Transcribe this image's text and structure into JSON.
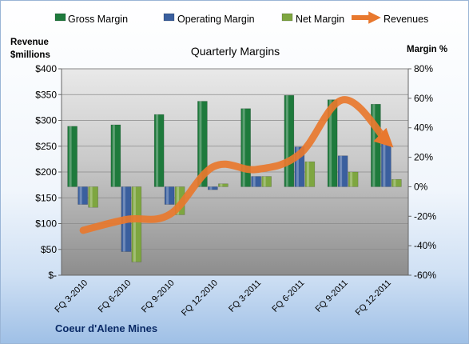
{
  "company": "Coeur d'Alene Mines",
  "chart_data": {
    "type": "bar",
    "title": "Quarterly Margins",
    "categories": [
      "FQ 3-2010",
      "FQ 6-2010",
      "FQ 9-2010",
      "FQ 12-2010",
      "FQ 3-2011",
      "FQ 6-2011",
      "FQ 9-2011",
      "FQ 12-2011"
    ],
    "ylabel_left": "Revenue\n$millions",
    "ylabel_right": "Margin %",
    "left_axis": {
      "min": 0,
      "max": 400,
      "step": 50,
      "tick_labels": [
        "$-",
        "$50",
        "$100",
        "$150",
        "$200",
        "$250",
        "$300",
        "$350",
        "$400"
      ]
    },
    "right_axis": {
      "min": -60,
      "max": 80,
      "step": 20,
      "tick_labels": [
        "-60%",
        "-40%",
        "-20%",
        "0%",
        "20%",
        "40%",
        "60%",
        "80%"
      ]
    },
    "series": [
      {
        "name": "Gross Margin",
        "axis": "right",
        "kind": "bar",
        "color": "#1e7a3c",
        "values": [
          41,
          42,
          49,
          58,
          53,
          62,
          59,
          56
        ]
      },
      {
        "name": "Operating Margin",
        "axis": "right",
        "kind": "bar",
        "color": "#3a5f9e",
        "values": [
          -12,
          -44,
          -12,
          -2,
          7,
          27,
          21,
          30
        ]
      },
      {
        "name": "Net Margin",
        "axis": "right",
        "kind": "bar",
        "color": "#7ea640",
        "values": [
          -14,
          -51,
          -19,
          2,
          7,
          17,
          10,
          5
        ]
      },
      {
        "name": "Revenues",
        "axis": "left",
        "kind": "line",
        "color": "#e8782e",
        "values": [
          87,
          108,
          118,
          210,
          205,
          235,
          340,
          260
        ]
      }
    ],
    "grid": true,
    "legend_position": "top"
  }
}
